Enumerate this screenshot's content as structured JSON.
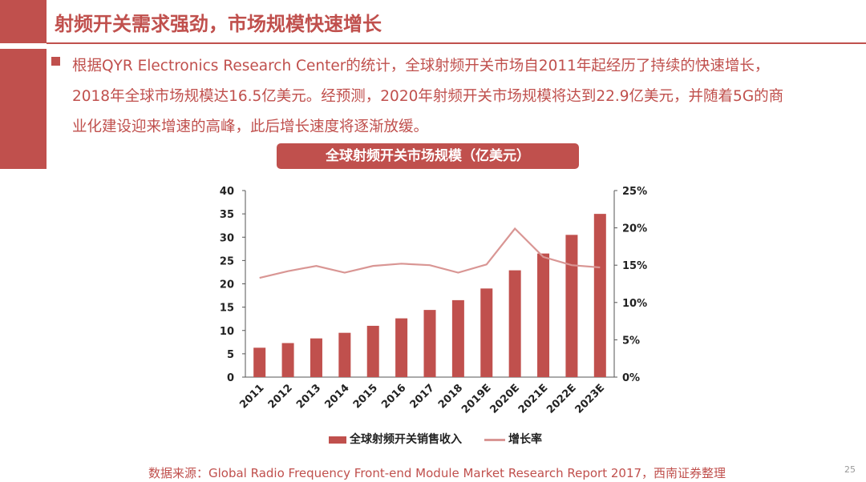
{
  "title": "射频开关需求强劲，市场规模快速增长",
  "bullet": "根据QYR Electronics Research Center的统计，全球射频开关市场自2011年起经历了持续的快速增长，2018年全球市场规模达16.5亿美元。经预测，2020年射频开关市场规模将达到22.9亿美元，并随着5G的商业化建设迎来增速的高峰，此后增长速度将逐渐放缓。",
  "source": "数据来源：Global Radio Frequency Front-end Module Market Research Report 2017，西南证券整理",
  "page_number": "25",
  "colors": {
    "accent": "#c0504d",
    "line": "#d99694"
  },
  "chart_data": {
    "type": "bar",
    "title": "全球射频开关市场规模（亿美元）",
    "categories": [
      "2011",
      "2012",
      "2013",
      "2014",
      "2015",
      "2016",
      "2017",
      "2018",
      "2019E",
      "2020E",
      "2021E",
      "2022E",
      "2023E"
    ],
    "series": [
      {
        "name": "全球射频开关销售收入",
        "type": "bar",
        "axis": "left",
        "values": [
          6.3,
          7.3,
          8.3,
          9.5,
          11.0,
          12.6,
          14.4,
          16.5,
          19.0,
          22.9,
          26.5,
          30.5,
          35.0
        ]
      },
      {
        "name": "增长率",
        "type": "line",
        "axis": "right",
        "values": [
          13.3,
          14.2,
          14.9,
          14.0,
          14.9,
          15.2,
          15.0,
          14.0,
          15.1,
          19.9,
          16.1,
          15.0,
          14.7
        ]
      }
    ],
    "ylim_left": [
      0,
      40
    ],
    "yticks_left": [
      "0",
      "5",
      "10",
      "15",
      "20",
      "25",
      "30",
      "35",
      "40"
    ],
    "ylim_right": [
      0,
      25
    ],
    "yticks_right": [
      "0%",
      "5%",
      "10%",
      "15%",
      "20%",
      "25%"
    ],
    "legend_position": "bottom",
    "grid": false
  }
}
